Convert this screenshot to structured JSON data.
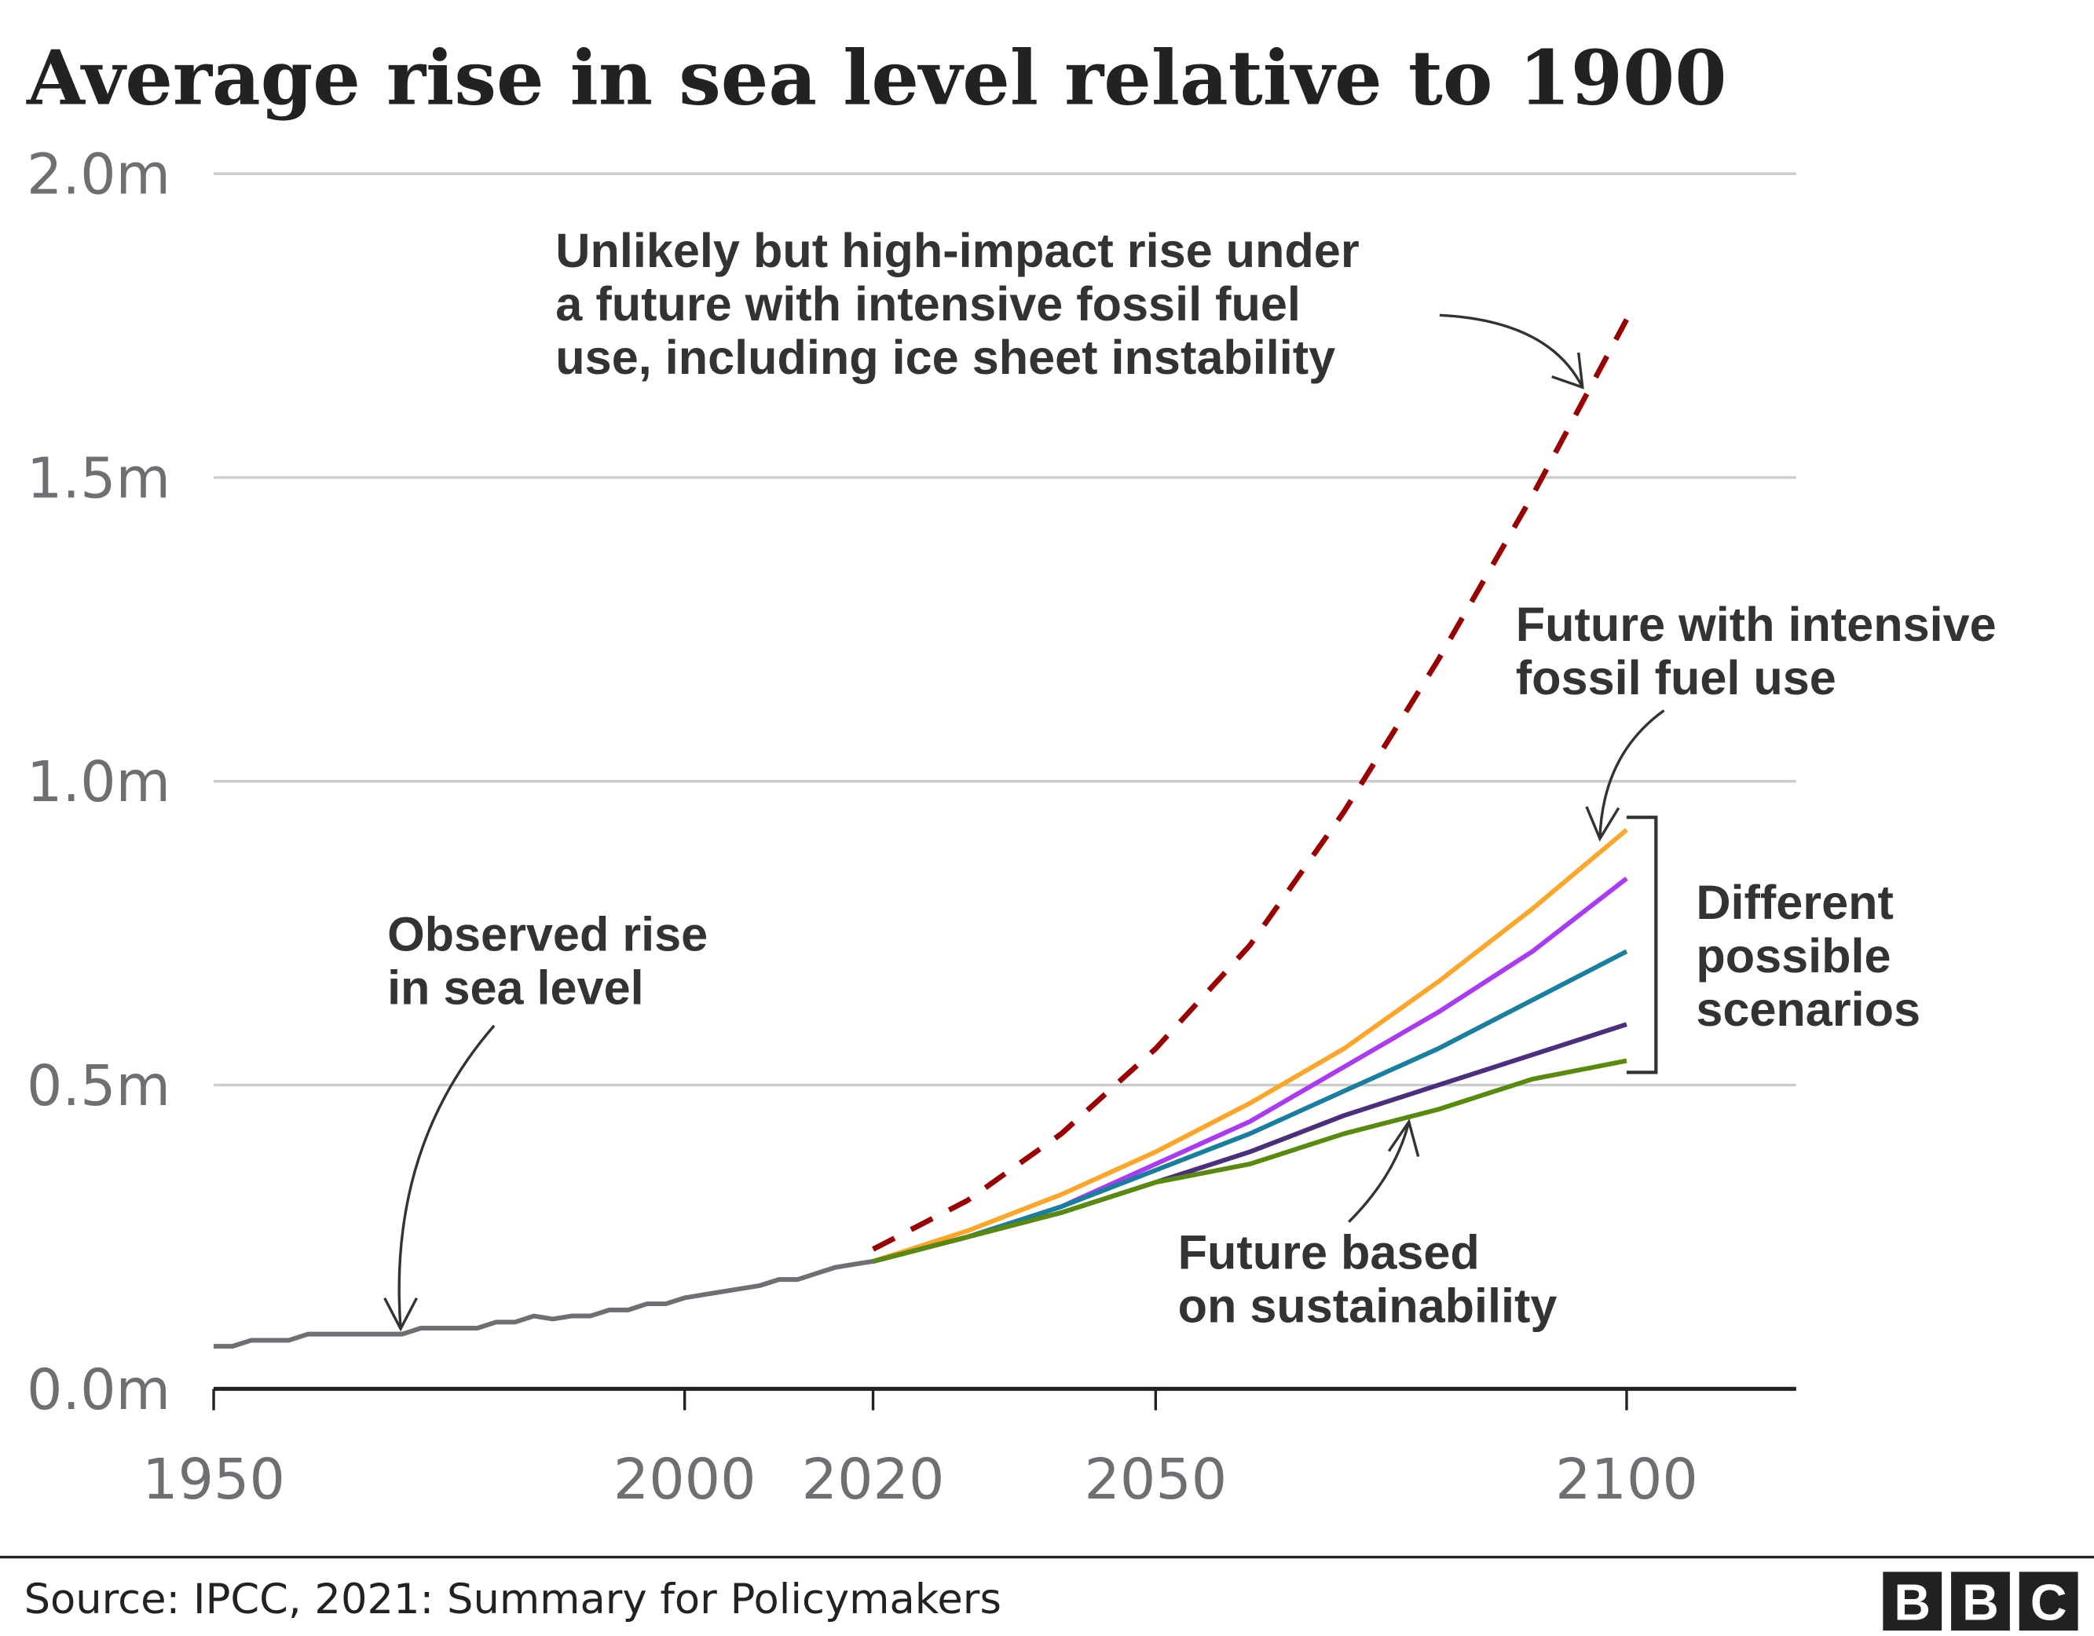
{
  "chart_data": {
    "type": "line",
    "title": "Average rise in sea level relative to 1900",
    "xlim": [
      1950,
      2118
    ],
    "ylim": [
      0,
      2.0
    ],
    "x_ticks": [
      1950,
      2000,
      2020,
      2050,
      2100
    ],
    "x_tick_labels": [
      "1950",
      "2000",
      "2020",
      "2050",
      "2100"
    ],
    "y_ticks": [
      0,
      0.5,
      1.0,
      1.5,
      2.0
    ],
    "y_tick_labels": [
      "0.0m",
      "0.5m",
      "1.0m",
      "1.5m",
      "2.0m"
    ],
    "grid": true,
    "series": [
      {
        "id": "observed",
        "color": "#6e6e73",
        "style": "solid",
        "x": [
          1950,
          1952,
          1954,
          1956,
          1958,
          1960,
          1962,
          1964,
          1966,
          1968,
          1970,
          1972,
          1974,
          1976,
          1978,
          1980,
          1982,
          1984,
          1986,
          1988,
          1990,
          1992,
          1994,
          1996,
          1998,
          2000,
          2002,
          2004,
          2006,
          2008,
          2010,
          2012,
          2014,
          2016,
          2018,
          2020
        ],
        "y": [
          0.07,
          0.07,
          0.08,
          0.08,
          0.08,
          0.09,
          0.09,
          0.09,
          0.09,
          0.09,
          0.09,
          0.1,
          0.1,
          0.1,
          0.1,
          0.11,
          0.11,
          0.12,
          0.115,
          0.12,
          0.12,
          0.13,
          0.13,
          0.14,
          0.14,
          0.15,
          0.155,
          0.16,
          0.165,
          0.17,
          0.18,
          0.18,
          0.19,
          0.2,
          0.205,
          0.21
        ]
      },
      {
        "id": "high-impact",
        "color": "#990000",
        "style": "dashed",
        "x": [
          2020,
          2030,
          2040,
          2050,
          2060,
          2070,
          2080,
          2090,
          2100
        ],
        "y": [
          0.23,
          0.31,
          0.42,
          0.56,
          0.73,
          0.95,
          1.2,
          1.47,
          1.76
        ]
      },
      {
        "id": "intensive-fossil-fuel",
        "color": "#fca62b",
        "style": "solid",
        "x": [
          2020,
          2030,
          2040,
          2050,
          2060,
          2070,
          2080,
          2090,
          2100
        ],
        "y": [
          0.21,
          0.26,
          0.32,
          0.39,
          0.47,
          0.56,
          0.67,
          0.79,
          0.92
        ]
      },
      {
        "id": "scenario-2",
        "color": "#a93bf2",
        "style": "solid",
        "x": [
          2020,
          2030,
          2040,
          2050,
          2060,
          2070,
          2080,
          2090,
          2100
        ],
        "y": [
          0.21,
          0.25,
          0.3,
          0.37,
          0.44,
          0.53,
          0.62,
          0.72,
          0.84
        ]
      },
      {
        "id": "scenario-3",
        "color": "#1a7f9e",
        "style": "solid",
        "x": [
          2020,
          2030,
          2040,
          2050,
          2060,
          2070,
          2080,
          2090,
          2100
        ],
        "y": [
          0.21,
          0.25,
          0.3,
          0.36,
          0.42,
          0.49,
          0.56,
          0.64,
          0.72
        ]
      },
      {
        "id": "scenario-4",
        "color": "#4b2f7d",
        "style": "solid",
        "x": [
          2020,
          2030,
          2040,
          2050,
          2060,
          2070,
          2080,
          2090,
          2100
        ],
        "y": [
          0.21,
          0.25,
          0.29,
          0.34,
          0.39,
          0.45,
          0.5,
          0.55,
          0.6
        ]
      },
      {
        "id": "sustainability",
        "color": "#5a8a0d",
        "style": "solid",
        "x": [
          2020,
          2030,
          2040,
          2050,
          2060,
          2070,
          2080,
          2090,
          2100
        ],
        "y": [
          0.21,
          0.25,
          0.29,
          0.34,
          0.37,
          0.42,
          0.46,
          0.51,
          0.54
        ]
      }
    ],
    "annotations": {
      "high_impact": [
        "Unlikely but high-impact rise under",
        "a future with intensive fossil fuel",
        "use, including ice sheet instability"
      ],
      "intensive": [
        "Future with intensive",
        "fossil fuel use"
      ],
      "scenarios": [
        "Different",
        "possible",
        "scenarios"
      ],
      "observed": [
        "Observed rise",
        "in sea level"
      ],
      "sustainability": [
        "Future based",
        "on sustainability"
      ]
    }
  },
  "footer": {
    "source": "Source: IPCC, 2021: Summary for Policymakers",
    "logo_letters": [
      "B",
      "B",
      "C"
    ]
  }
}
